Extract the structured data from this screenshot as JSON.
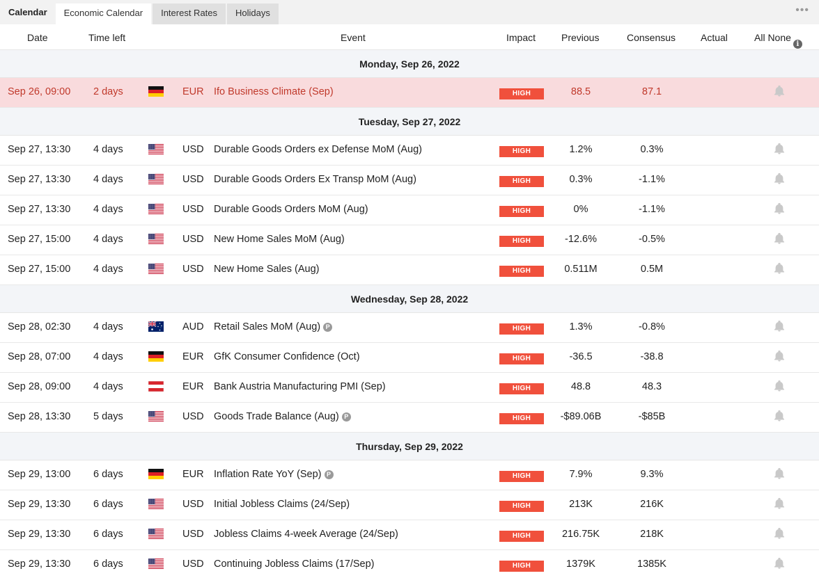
{
  "tabs": {
    "title": "Calendar",
    "items": [
      "Economic Calendar",
      "Interest Rates",
      "Holidays"
    ],
    "more": "•••"
  },
  "columns": {
    "date": "Date",
    "time_left": "Time left",
    "event": "Event",
    "impact": "Impact",
    "previous": "Previous",
    "consensus": "Consensus",
    "actual": "Actual",
    "all_none": "All None"
  },
  "colors": {
    "high_badge": "#f0503c",
    "highlight_row": "#f9dbdd",
    "day_header_bg": "#f3f5f8"
  },
  "groups": [
    {
      "day": "Monday, Sep 26, 2022",
      "rows": [
        {
          "date": "Sep 26, 09:00",
          "time_left": "2 days",
          "flag": "germany-flag-icon",
          "currency": "EUR",
          "event": "Ifo Business Climate (Sep)",
          "p": false,
          "impact": "HIGH",
          "previous": "88.5",
          "consensus": "87.1",
          "highlight": true
        }
      ]
    },
    {
      "day": "Tuesday, Sep 27, 2022",
      "rows": [
        {
          "date": "Sep 27, 13:30",
          "time_left": "4 days",
          "flag": "usa-flag-icon",
          "currency": "USD",
          "event": "Durable Goods Orders ex Defense MoM (Aug)",
          "p": false,
          "impact": "HIGH",
          "previous": "1.2%",
          "consensus": "0.3%"
        },
        {
          "date": "Sep 27, 13:30",
          "time_left": "4 days",
          "flag": "usa-flag-icon",
          "currency": "USD",
          "event": "Durable Goods Orders Ex Transp MoM (Aug)",
          "p": false,
          "impact": "HIGH",
          "previous": "0.3%",
          "consensus": "-1.1%"
        },
        {
          "date": "Sep 27, 13:30",
          "time_left": "4 days",
          "flag": "usa-flag-icon",
          "currency": "USD",
          "event": "Durable Goods Orders MoM (Aug)",
          "p": false,
          "impact": "HIGH",
          "previous": "0%",
          "consensus": "-1.1%"
        },
        {
          "date": "Sep 27, 15:00",
          "time_left": "4 days",
          "flag": "usa-flag-icon",
          "currency": "USD",
          "event": "New Home Sales MoM (Aug)",
          "p": false,
          "impact": "HIGH",
          "previous": "-12.6%",
          "consensus": "-0.5%"
        },
        {
          "date": "Sep 27, 15:00",
          "time_left": "4 days",
          "flag": "usa-flag-icon",
          "currency": "USD",
          "event": "New Home Sales (Aug)",
          "p": false,
          "impact": "HIGH",
          "previous": "0.511M",
          "consensus": "0.5M"
        }
      ]
    },
    {
      "day": "Wednesday, Sep 28, 2022",
      "rows": [
        {
          "date": "Sep 28, 02:30",
          "time_left": "4 days",
          "flag": "australia-flag-icon",
          "currency": "AUD",
          "event": "Retail Sales MoM (Aug)",
          "p": true,
          "impact": "HIGH",
          "previous": "1.3%",
          "consensus": "-0.8%"
        },
        {
          "date": "Sep 28, 07:00",
          "time_left": "4 days",
          "flag": "germany-flag-icon",
          "currency": "EUR",
          "event": "GfK Consumer Confidence (Oct)",
          "p": false,
          "impact": "HIGH",
          "previous": "-36.5",
          "consensus": "-38.8"
        },
        {
          "date": "Sep 28, 09:00",
          "time_left": "4 days",
          "flag": "austria-flag-icon",
          "currency": "EUR",
          "event": "Bank Austria Manufacturing PMI (Sep)",
          "p": false,
          "impact": "HIGH",
          "previous": "48.8",
          "consensus": "48.3"
        },
        {
          "date": "Sep 28, 13:30",
          "time_left": "5 days",
          "flag": "usa-flag-icon",
          "currency": "USD",
          "event": "Goods Trade Balance (Aug)",
          "p": true,
          "impact": "HIGH",
          "previous": "-$89.06B",
          "consensus": "-$85B"
        }
      ]
    },
    {
      "day": "Thursday, Sep 29, 2022",
      "rows": [
        {
          "date": "Sep 29, 13:00",
          "time_left": "6 days",
          "flag": "germany-flag-icon",
          "currency": "EUR",
          "event": "Inflation Rate YoY (Sep)",
          "p": true,
          "impact": "HIGH",
          "previous": "7.9%",
          "consensus": "9.3%"
        },
        {
          "date": "Sep 29, 13:30",
          "time_left": "6 days",
          "flag": "usa-flag-icon",
          "currency": "USD",
          "event": "Initial Jobless Claims (24/Sep)",
          "p": false,
          "impact": "HIGH",
          "previous": "213K",
          "consensus": "216K"
        },
        {
          "date": "Sep 29, 13:30",
          "time_left": "6 days",
          "flag": "usa-flag-icon",
          "currency": "USD",
          "event": "Jobless Claims 4-week Average (24/Sep)",
          "p": false,
          "impact": "HIGH",
          "previous": "216.75K",
          "consensus": "218K"
        },
        {
          "date": "Sep 29, 13:30",
          "time_left": "6 days",
          "flag": "usa-flag-icon",
          "currency": "USD",
          "event": "Continuing Jobless Claims (17/Sep)",
          "p": false,
          "impact": "HIGH",
          "previous": "1379K",
          "consensus": "1385K"
        }
      ]
    }
  ]
}
